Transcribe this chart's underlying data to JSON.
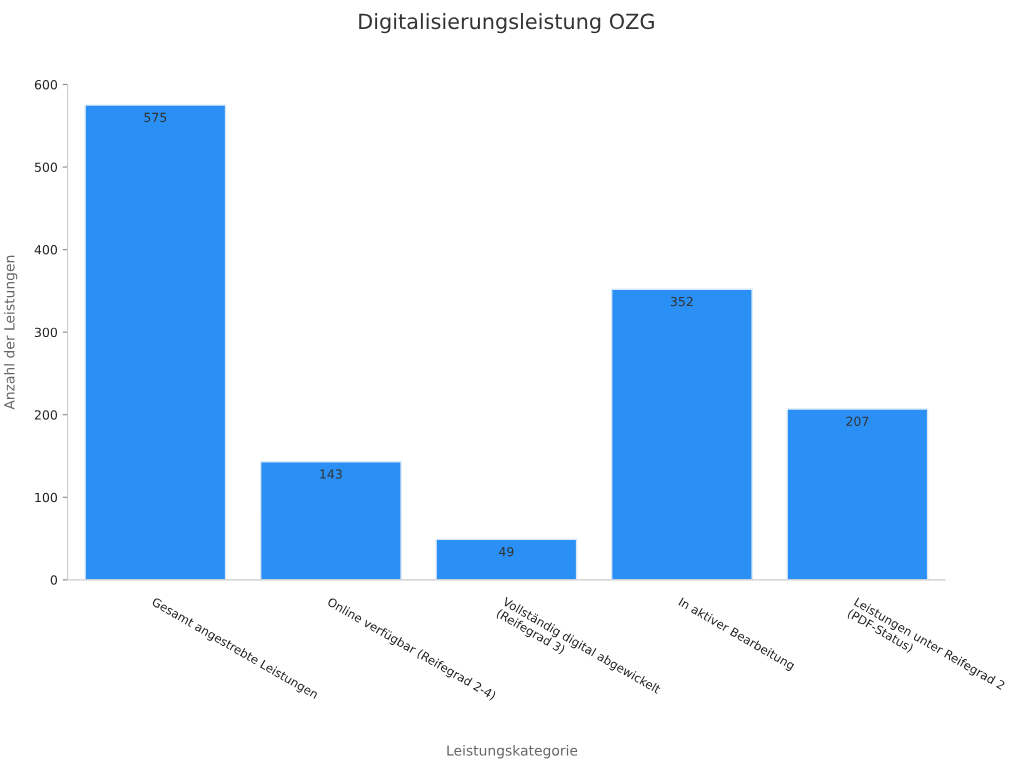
{
  "chart_data": {
    "type": "bar",
    "title": "Digitalisierungsleistung OZG",
    "xlabel": "Leistungskategorie",
    "ylabel": "Anzahl der Leistungen",
    "categories": [
      "Gesamt angestrebte Leistungen",
      "Online verfügbar (Reifegrad 2-4)",
      "Vollständig digital abgewickelt\n(Reifegrad 3)",
      "In aktiver Bearbeitung",
      "Leistungen unter Reifegrad 2\n(PDF-Status)"
    ],
    "values": [
      575,
      143,
      49,
      352,
      207
    ],
    "color": "#2b90f5",
    "ylim": [
      0,
      600
    ],
    "yticks": [
      0,
      100,
      200,
      300,
      400,
      500,
      600
    ],
    "grid": false,
    "data_labels": true
  }
}
